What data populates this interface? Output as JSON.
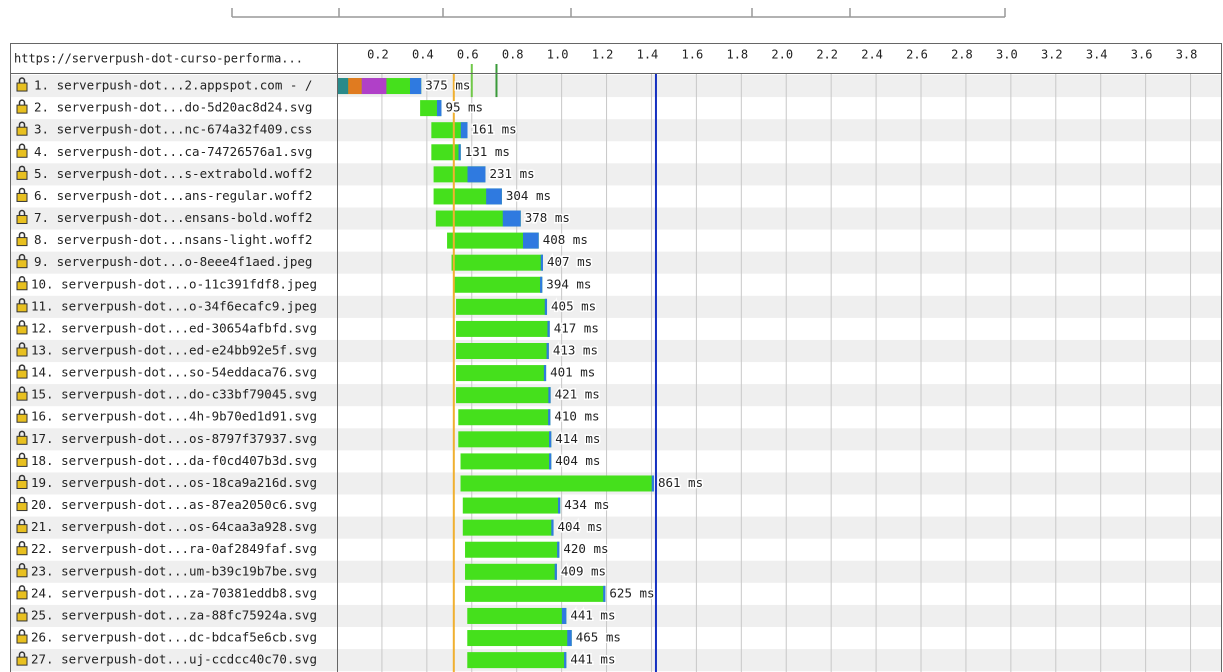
{
  "chart_data": {
    "type": "waterfall",
    "column_header": "https://serverpush-dot-curso-performa...",
    "categories": [
      "1. serverpush-dot...2.appspot.com - /",
      "2. serverpush-dot...do-5d20ac8d24.svg",
      "3. serverpush-dot...nc-674a32f409.css",
      "4. serverpush-dot...ca-74726576a1.svg",
      "5. serverpush-dot...s-extrabold.woff2",
      "6. serverpush-dot...ans-regular.woff2",
      "7. serverpush-dot...ensans-bold.woff2",
      "8. serverpush-dot...nsans-light.woff2",
      "9. serverpush-dot...o-8eee4f1aed.jpeg",
      "10. serverpush-dot...o-11c391fdf8.jpeg",
      "11. serverpush-dot...o-34f6ecafc9.jpeg",
      "12. serverpush-dot...ed-30654afbfd.svg",
      "13. serverpush-dot...ed-e24bb92e5f.svg",
      "14. serverpush-dot...so-54eddaca76.svg",
      "15. serverpush-dot...do-c33bf79045.svg",
      "16. serverpush-dot...4h-9b70ed1d91.svg",
      "17. serverpush-dot...os-8797f37937.svg",
      "18. serverpush-dot...da-f0cd407b3d.svg",
      "19. serverpush-dot...os-18ca9a216d.svg",
      "20. serverpush-dot...as-87ea2050c6.svg",
      "21. serverpush-dot...os-64caa3a928.svg",
      "22. serverpush-dot...ra-0af2849faf.svg",
      "23. serverpush-dot...um-b39c19b7be.svg",
      "24. serverpush-dot...za-70381eddb8.svg",
      "25. serverpush-dot...za-88fc75924a.svg",
      "26. serverpush-dot...dc-bdcaf5e6cb.svg",
      "27. serverpush-dot...uj-ccdcc40c70.svg"
    ],
    "start": [
      0,
      0.37,
      0.42,
      0.42,
      0.43,
      0.43,
      0.44,
      0.49,
      0.51,
      0.52,
      0.53,
      0.53,
      0.53,
      0.53,
      0.53,
      0.54,
      0.54,
      0.55,
      0.55,
      0.56,
      0.56,
      0.57,
      0.57,
      0.57,
      0.58,
      0.58,
      0.58
    ],
    "values": [
      0.375,
      0.095,
      0.161,
      0.131,
      0.231,
      0.304,
      0.378,
      0.408,
      0.407,
      0.394,
      0.405,
      0.417,
      0.413,
      0.401,
      0.421,
      0.41,
      0.414,
      0.404,
      0.861,
      0.434,
      0.404,
      0.42,
      0.409,
      0.625,
      0.441,
      0.465,
      0.441
    ],
    "value_labels": [
      "375 ms",
      "95 ms",
      "161 ms",
      "131 ms",
      "231 ms",
      "304 ms",
      "378 ms",
      "408 ms",
      "407 ms",
      "394 ms",
      "405 ms",
      "417 ms",
      "413 ms",
      "401 ms",
      "421 ms",
      "410 ms",
      "414 ms",
      "404 ms",
      "861 ms",
      "434 ms",
      "404 ms",
      "420 ms",
      "409 ms",
      "625 ms",
      "441 ms",
      "465 ms",
      "441 ms"
    ],
    "color": "#45e01c",
    "download": [
      0.05,
      0.02,
      0.03,
      0.01,
      0.08,
      0.07,
      0.08,
      0.07,
      0.01,
      0.01,
      0.01,
      0.01,
      0.01,
      0.01,
      0.01,
      0.01,
      0.01,
      0.01,
      0.01,
      0.01,
      0.01,
      0.01,
      0.01,
      0.01,
      0.02,
      0.02,
      0.01
    ],
    "download_color": "#2f7ae0",
    "phases": [
      {
        "color": "#2a8a8a",
        "values": [
          0.05,
          null,
          null,
          null,
          null,
          null,
          null,
          null,
          null,
          null,
          null,
          null,
          null,
          null,
          null,
          null,
          null,
          null,
          null,
          null,
          null,
          null,
          null,
          null,
          null,
          null,
          null
        ]
      },
      {
        "color": "#e07b20",
        "values": [
          0.06,
          null,
          null,
          null,
          null,
          null,
          null,
          null,
          null,
          null,
          null,
          null,
          null,
          null,
          null,
          null,
          null,
          null,
          null,
          null,
          null,
          null,
          null,
          null,
          null,
          null,
          null
        ]
      },
      {
        "color": "#b040c8",
        "values": [
          0.11,
          null,
          null,
          null,
          null,
          null,
          null,
          null,
          null,
          null,
          null,
          null,
          null,
          null,
          null,
          null,
          null,
          null,
          null,
          null,
          null,
          null,
          null,
          null,
          null,
          null,
          null
        ]
      }
    ],
    "markers": [
      {
        "color": "#f0b030",
        "value": 0.52
      },
      {
        "color": "#70c848",
        "value": 0.6
      },
      {
        "color": "#3a9a3a",
        "value": 0.71
      },
      {
        "color": "#1530c0",
        "value": 1.42
      }
    ],
    "xlim": [
      0,
      3.94
    ],
    "xticks": [
      0.2,
      0.4,
      0.6,
      0.8,
      {
        "value": 1,
        "label": "1.0"
      },
      1.2,
      1.4,
      1.6,
      1.8,
      {
        "value": 2,
        "label": "2.0"
      },
      2.2,
      2.4,
      2.6,
      2.8,
      {
        "value": 3,
        "label": "3.0"
      },
      3.2,
      3.4,
      3.6,
      3.8
    ],
    "grid": true
  }
}
